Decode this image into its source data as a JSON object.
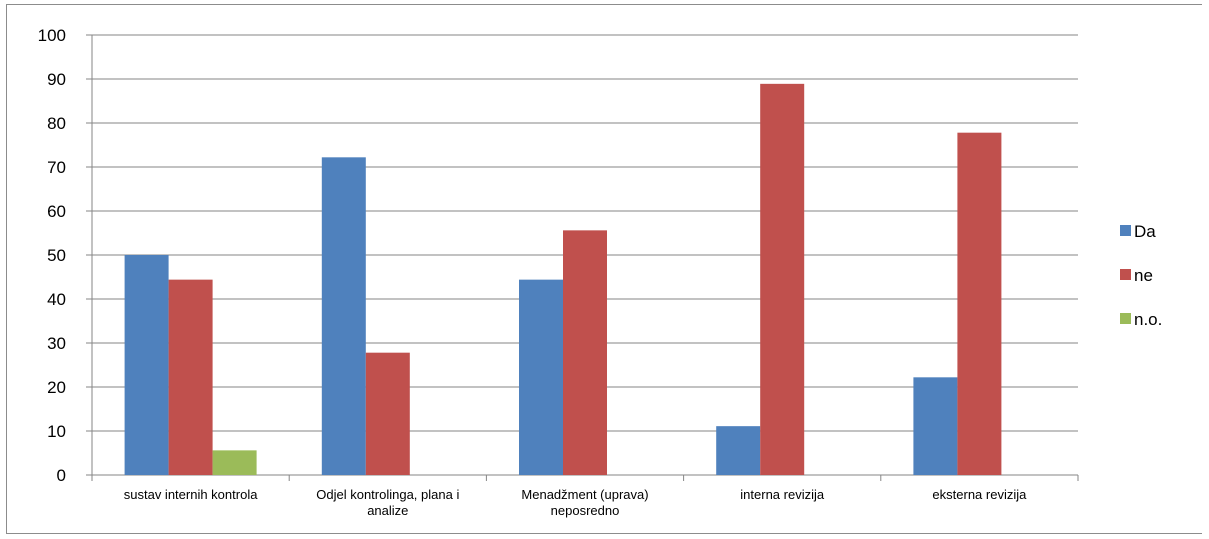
{
  "chart_data": {
    "type": "bar",
    "title": "",
    "xlabel": "",
    "ylabel": "",
    "ylim": [
      0,
      100
    ],
    "yticks": [
      0,
      10,
      20,
      30,
      40,
      50,
      60,
      70,
      80,
      90,
      100
    ],
    "grid": true,
    "legend_position": "right",
    "categories": [
      [
        "sustav internih kontrola"
      ],
      [
        "Odjel kontrolinga, plana i",
        "analize"
      ],
      [
        "Menadžment (uprava)",
        "neposredno"
      ],
      [
        "interna revizija"
      ],
      [
        "eksterna revizija"
      ]
    ],
    "series": [
      {
        "name": "Da",
        "color": "#4f81bd",
        "values": [
          50,
          72.2,
          44.4,
          11.1,
          22.2
        ]
      },
      {
        "name": "ne",
        "color": "#c0504d",
        "values": [
          44.4,
          27.8,
          55.6,
          88.9,
          77.8
        ]
      },
      {
        "name": "n.o.",
        "color": "#9bbb59",
        "values": [
          5.6,
          0,
          0,
          0,
          0
        ]
      }
    ]
  }
}
